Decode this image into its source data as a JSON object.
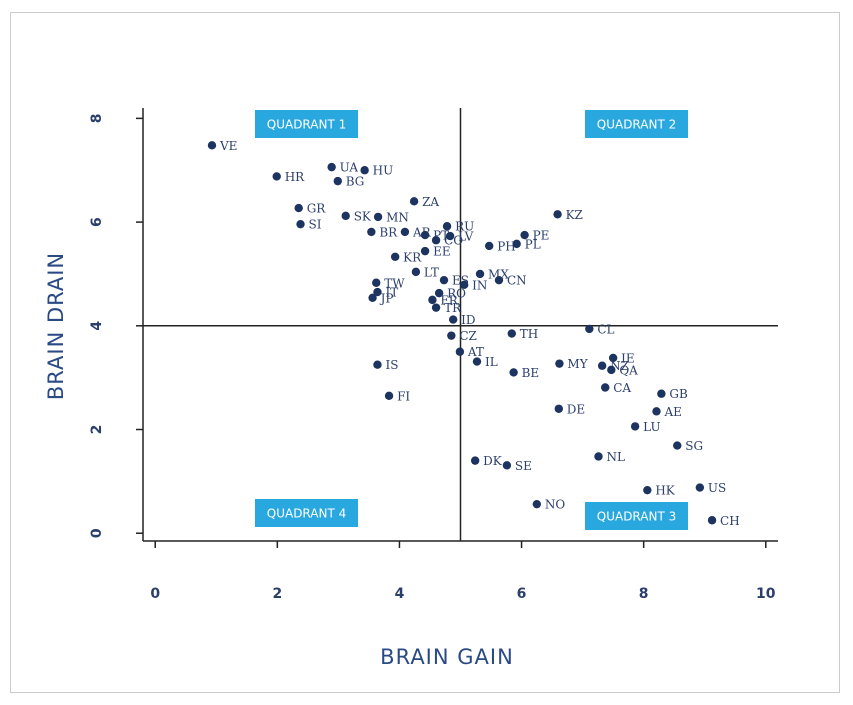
{
  "chart_data": {
    "type": "scatter",
    "x_label": "BRAIN GAIN",
    "y_label": "BRAIN DRAIN",
    "annotations": [
      "QUADRANT 1",
      "QUADRANT 2",
      "QUADRANT 4",
      "QUADRANT 3"
    ],
    "dividers": {
      "x": 5,
      "y": 4
    },
    "color": "#1d3461",
    "xlim": [
      -0.2,
      10.2
    ],
    "ylim": [
      -0.15,
      8.2
    ],
    "xticks": [
      0,
      2,
      4,
      6,
      8,
      10
    ],
    "yticks": [
      0,
      2,
      4,
      6,
      8
    ],
    "labels": [
      "VE",
      "HR",
      "UA",
      "HU",
      "BG",
      "ZA",
      "GR",
      "SK",
      "MN",
      "SI",
      "RU",
      "KZ",
      "BR",
      "AR",
      "PT",
      "CO",
      "LV",
      "PE",
      "PH",
      "PL",
      "EE",
      "KR",
      "LT",
      "ES",
      "MX",
      "CN",
      "IN",
      "TW",
      "IT",
      "JP",
      "RO",
      "FR",
      "TR",
      "ID",
      "CL",
      "TH",
      "CZ",
      "AT",
      "IL",
      "IS",
      "MY",
      "IE",
      "NZ",
      "QA",
      "BE",
      "CA",
      "GB",
      "FI",
      "DE",
      "AE",
      "LU",
      "SG",
      "NL",
      "DK",
      "SE",
      "HK",
      "US",
      "NO",
      "CH"
    ],
    "x": [
      0.93,
      1.99,
      2.89,
      3.43,
      2.99,
      4.24,
      2.35,
      3.12,
      3.65,
      2.38,
      4.78,
      6.59,
      3.54,
      4.09,
      4.42,
      4.6,
      4.83,
      6.05,
      5.47,
      5.92,
      4.42,
      3.93,
      4.27,
      4.73,
      5.32,
      5.63,
      5.06,
      3.62,
      3.64,
      3.56,
      4.65,
      4.54,
      4.6,
      4.88,
      7.11,
      5.84,
      4.85,
      4.99,
      5.27,
      3.64,
      6.62,
      7.5,
      7.32,
      7.47,
      5.87,
      7.37,
      8.29,
      3.83,
      6.61,
      8.21,
      7.86,
      8.55,
      7.26,
      5.24,
      5.76,
      8.06,
      8.92,
      6.25,
      9.12
    ],
    "values": [
      7.48,
      6.88,
      7.06,
      7.0,
      6.79,
      6.4,
      6.27,
      6.12,
      6.1,
      5.96,
      5.92,
      6.15,
      5.81,
      5.81,
      5.75,
      5.65,
      5.73,
      5.75,
      5.54,
      5.58,
      5.44,
      5.33,
      5.04,
      4.88,
      5.0,
      4.88,
      4.79,
      4.83,
      4.65,
      4.54,
      4.63,
      4.5,
      4.35,
      4.12,
      3.94,
      3.85,
      3.81,
      3.5,
      3.31,
      3.25,
      3.27,
      3.38,
      3.23,
      3.15,
      3.1,
      2.81,
      2.69,
      2.65,
      2.4,
      2.35,
      2.06,
      1.69,
      1.48,
      1.4,
      1.31,
      0.83,
      0.88,
      0.56,
      0.25
    ]
  }
}
